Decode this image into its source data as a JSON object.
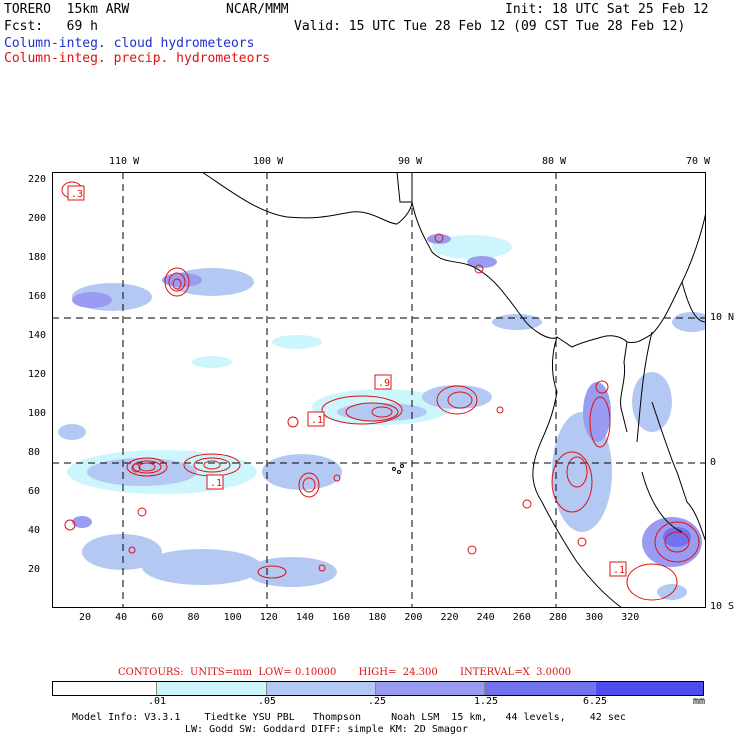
{
  "header": {
    "model": "TORERO  15km ARW",
    "center": "NCAR/MMM",
    "init": "Init: 18 UTC Sat 25 Feb 12",
    "fcst": "Fcst:   69 h",
    "valid": "Valid: 15 UTC Tue 28 Feb 12 (09 CST Tue 28 Feb 12)",
    "field_cloud": "Column-integ. cloud hydrometeors",
    "field_precip": "Column-integ. precip. hydrometeors"
  },
  "map": {
    "top_lon_labels": [
      "110 W",
      "100 W",
      "90 W",
      "80 W",
      "70 W"
    ],
    "right_lat_labels": [
      "10 N",
      "0",
      "10 S"
    ],
    "x_ticks": [
      "20",
      "40",
      "60",
      "80",
      "100",
      "120",
      "140",
      "160",
      "180",
      "200",
      "220",
      "240",
      "260",
      "280",
      "300",
      "320"
    ],
    "y_ticks": [
      "20",
      "40",
      "60",
      "80",
      "100",
      "120",
      "140",
      "160",
      "180",
      "200",
      "220"
    ],
    "contour_labels": [
      ".3",
      ".1",
      ".9",
      ".1",
      ".1"
    ]
  },
  "contour_info": "CONTOURS:  UNITS=mm  LOW= 0.10000       HIGH=  24.300       INTERVAL=X  3.0000",
  "colorbar": {
    "ticks": [
      ".01",
      ".05",
      ".25",
      "1.25",
      "6.25"
    ],
    "unit": "mm",
    "colors": [
      "#ffffff",
      "#ccf6fc",
      "#b4c8f4",
      "#9a9cf2",
      "#7272ee",
      "#4e4cec",
      "#2420ec"
    ]
  },
  "footer": {
    "line1": "Model Info: V3.3.1    Tiedtke YSU PBL   Thompson     Noah LSM  15 km,   44 levels,    42 sec",
    "line2": "LW: Godd SW: Goddard DIFF: simple KM: 2D Smagor"
  }
}
